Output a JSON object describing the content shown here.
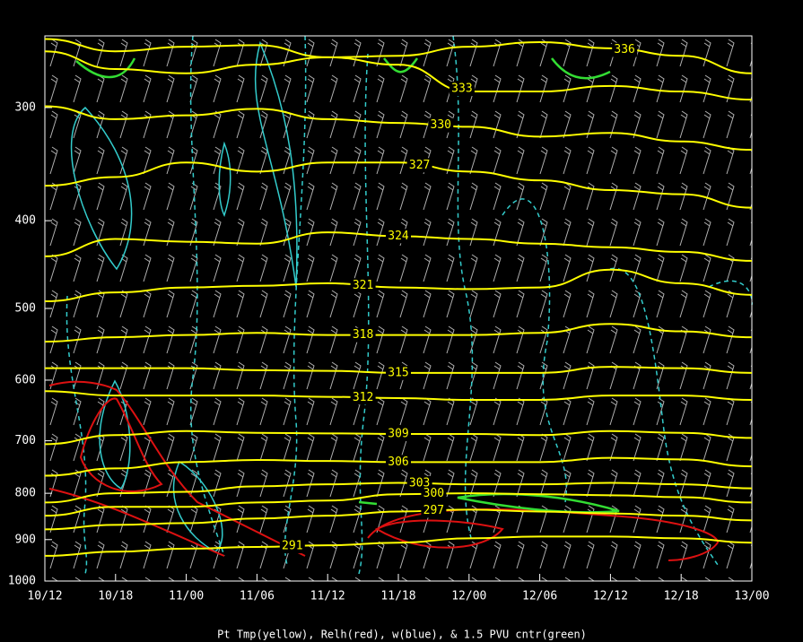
{
  "chart_data": {
    "type": "contour",
    "title": "Pt Tmp(yellow), Relh(red), w(blue), & 1.5 PVU cntr(green)",
    "categories": [
      "10/12",
      "10/18",
      "11/00",
      "11/06",
      "11/12",
      "11/18",
      "12/00",
      "12/06",
      "12/12",
      "12/18",
      "13/00"
    ],
    "ylim": [
      1000,
      250
    ],
    "log_y": true,
    "yticks": [
      300,
      400,
      500,
      600,
      700,
      800,
      900,
      1000
    ],
    "series": [
      {
        "name": "336",
        "color": "#ffff00",
        "values": [
          252,
          260,
          257,
          256,
          264,
          263,
          257,
          254,
          258,
          263,
          275
        ]
      },
      {
        "name": "333",
        "color": "#ffff00",
        "values": [
          260,
          272,
          275,
          269,
          264,
          269,
          288,
          288,
          284,
          288,
          294
        ]
      },
      {
        "name": "330",
        "color": "#ffff00",
        "values": [
          299,
          309,
          306,
          301,
          309,
          312,
          315,
          323,
          320,
          327,
          334
        ]
      },
      {
        "name": "327",
        "color": "#ffff00",
        "values": [
          366,
          358,
          345,
          353,
          345,
          345,
          353,
          361,
          370,
          374,
          387
        ]
      },
      {
        "name": "324",
        "color": "#ffff00",
        "values": [
          438,
          419,
          422,
          424,
          412,
          416,
          419,
          424,
          428,
          433,
          443
        ]
      },
      {
        "name": "321",
        "color": "#ffff00",
        "values": [
          491,
          480,
          474,
          472,
          469,
          474,
          476,
          474,
          453,
          469,
          483
        ]
      },
      {
        "name": "318",
        "color": "#ffff00",
        "values": [
          544,
          538,
          535,
          532,
          535,
          535,
          535,
          532,
          520,
          530,
          538
        ]
      },
      {
        "name": "315",
        "color": "#ffff00",
        "values": [
          582,
          582,
          582,
          585,
          586,
          589,
          589,
          589,
          580,
          582,
          589
        ]
      },
      {
        "name": "312",
        "color": "#ffff00",
        "values": [
          617,
          624,
          624,
          624,
          626,
          628,
          631,
          631,
          624,
          624,
          631
        ]
      },
      {
        "name": "309",
        "color": "#ffff00",
        "values": [
          706,
          690,
          683,
          686,
          687,
          688,
          688,
          690,
          683,
          686,
          695
        ]
      },
      {
        "name": "306",
        "color": "#ffff00",
        "values": [
          765,
          751,
          739,
          735,
          737,
          739,
          739,
          739,
          731,
          734,
          747
        ]
      },
      {
        "name": "303",
        "color": "#ffff00",
        "values": [
          819,
          800,
          797,
          786,
          782,
          779,
          782,
          782,
          779,
          782,
          790
        ]
      },
      {
        "name": "300",
        "color": "#ffff00",
        "values": [
          847,
          828,
          828,
          819,
          815,
          802,
          800,
          802,
          804,
          808,
          819
        ]
      },
      {
        "name": "297",
        "color": "#ffff00",
        "values": [
          877,
          867,
          863,
          853,
          847,
          838,
          834,
          838,
          842,
          847,
          857
        ]
      },
      {
        "name": "291",
        "color": "#ffff00",
        "values": [
          938,
          928,
          921,
          917,
          913,
          907,
          897,
          893,
          893,
          897,
          907
        ]
      }
    ]
  }
}
